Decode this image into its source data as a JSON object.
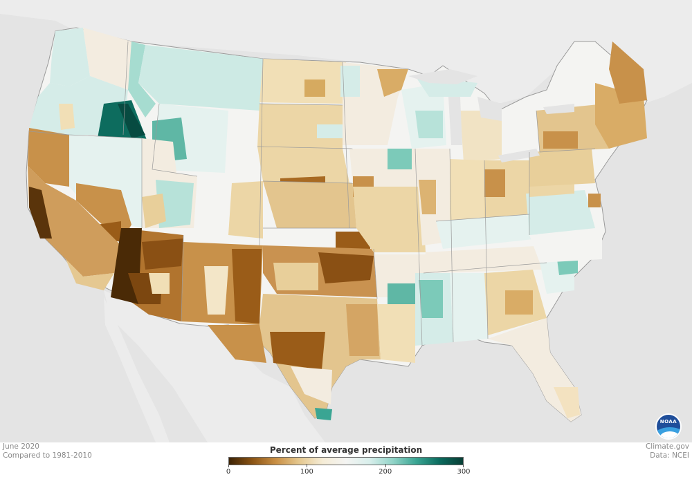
{
  "map": {
    "date": "June 2020",
    "comparison": "Compared to 1981-2010",
    "source_site": "Climate.gov",
    "source_data": "Data: NCEI",
    "logo_text": "NOAA"
  },
  "legend": {
    "title": "Percent of average precipitation",
    "ticks": [
      {
        "value": 0,
        "label": "0"
      },
      {
        "value": 100,
        "label": "100"
      },
      {
        "value": 200,
        "label": "200"
      },
      {
        "value": 300,
        "label": "300"
      }
    ],
    "min": 0,
    "max": 300,
    "colors": [
      "#3d2305",
      "#8b5414",
      "#c98f44",
      "#e5c88f",
      "#f5ecd6",
      "#f4f4f2",
      "#d9efec",
      "#92d4c8",
      "#3aa593",
      "#0b6b5e",
      "#083e35"
    ]
  },
  "colors": {
    "ocean_and_neighbors": "#e4e4e4",
    "land_neighbors": "#ececec",
    "very_dry": "#4b2c08",
    "dry": "#9a5c18",
    "moderately_dry": "#c8914a",
    "slightly_dry": "#e3c58e",
    "near_normal": "#f3ece0",
    "normal": "#f4f4f2",
    "slightly_wet": "#d5ece8",
    "wet": "#94d3c6",
    "very_wet": "#38a591",
    "extremely_wet": "#0d6c5e"
  }
}
